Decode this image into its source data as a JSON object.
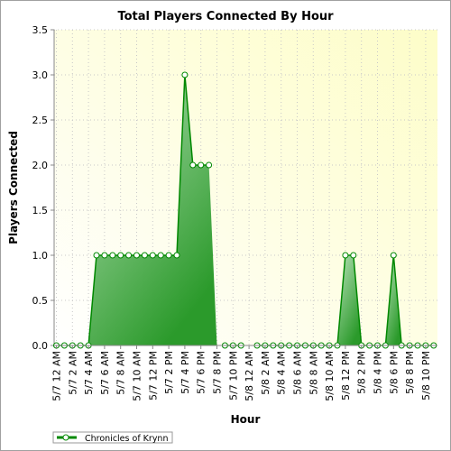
{
  "chart_data": {
    "type": "area",
    "title": "Total Players Connected By Hour",
    "xlabel": "Hour",
    "ylabel": "Players Connected",
    "ylim": [
      0,
      3.5
    ],
    "yticks": [
      "0.0",
      "0.5",
      "1.0",
      "1.5",
      "2.0",
      "2.5",
      "3.0",
      "3.5"
    ],
    "grid": true,
    "legend_position": "bottom-left",
    "x_tick_labels": [
      "5/7 12 AM",
      "5/7 2 AM",
      "5/7 4 AM",
      "5/7 6 AM",
      "5/7 8 AM",
      "5/7 10 AM",
      "5/7 12 PM",
      "5/7 2 PM",
      "5/7 4 PM",
      "5/7 6 PM",
      "5/7 8 PM",
      "5/7 10 PM",
      "5/8 12 AM",
      "5/8 2 AM",
      "5/8 4 AM",
      "5/8 6 AM",
      "5/8 8 AM",
      "5/8 10 AM",
      "5/8 12 PM",
      "5/8 2 PM",
      "5/8 4 PM",
      "5/8 6 PM",
      "5/8 8 PM",
      "5/8 10 PM"
    ],
    "series": [
      {
        "name": "Chronicles of Krynn",
        "color": "#008800",
        "values": [
          0,
          0,
          0,
          0,
          0,
          1,
          1,
          1,
          1,
          1,
          1,
          1,
          1,
          1,
          1,
          1,
          3,
          2,
          2,
          2,
          0,
          0,
          0,
          0,
          0,
          0,
          0,
          0,
          0,
          0,
          0,
          0,
          0,
          0,
          0,
          0,
          1,
          1,
          0,
          0,
          0,
          0,
          1,
          0,
          0,
          0,
          0,
          0
        ],
        "missing_indices": [
          20,
          24
        ]
      }
    ]
  }
}
